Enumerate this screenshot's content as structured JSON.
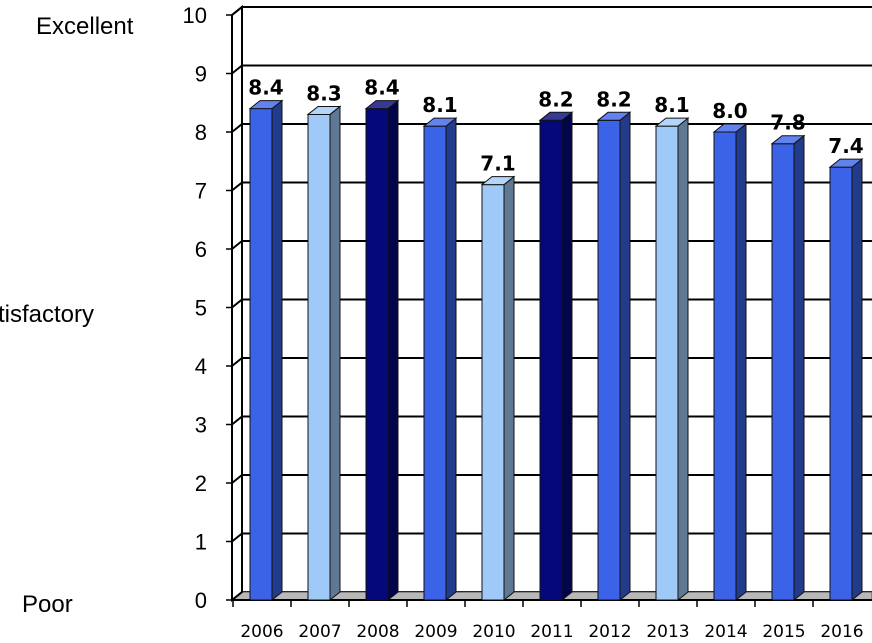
{
  "chart_data": {
    "type": "bar",
    "categories": [
      "2006",
      "2007",
      "2008",
      "2009",
      "2010",
      "2011",
      "2012",
      "2013",
      "2014",
      "2015",
      "2016"
    ],
    "values": [
      8.4,
      8.3,
      8.4,
      8.1,
      7.1,
      8.2,
      8.2,
      8.1,
      8.0,
      7.8,
      7.4
    ],
    "data_labels": [
      "8.4",
      "8.3",
      "8.4",
      "8.1",
      "7.1",
      "8.2",
      "8.2",
      "8.1",
      "8.0",
      "7.8",
      "7.4"
    ],
    "bar_colors": [
      "#3b63e8",
      "#9fcaf7",
      "#04087a",
      "#3b63e8",
      "#9fcaf7",
      "#04087a",
      "#3b63e8",
      "#9fcaf7",
      "#3b63e8",
      "#3b63e8",
      "#3b63e8"
    ],
    "ylim": [
      0,
      10
    ],
    "yticks": [
      0,
      1,
      2,
      3,
      4,
      5,
      6,
      7,
      8,
      9,
      10
    ],
    "grid": true,
    "legend": "none",
    "rating_labels": {
      "top": "Excellent",
      "middle": "tisfactory",
      "bottom": "Poor"
    }
  }
}
